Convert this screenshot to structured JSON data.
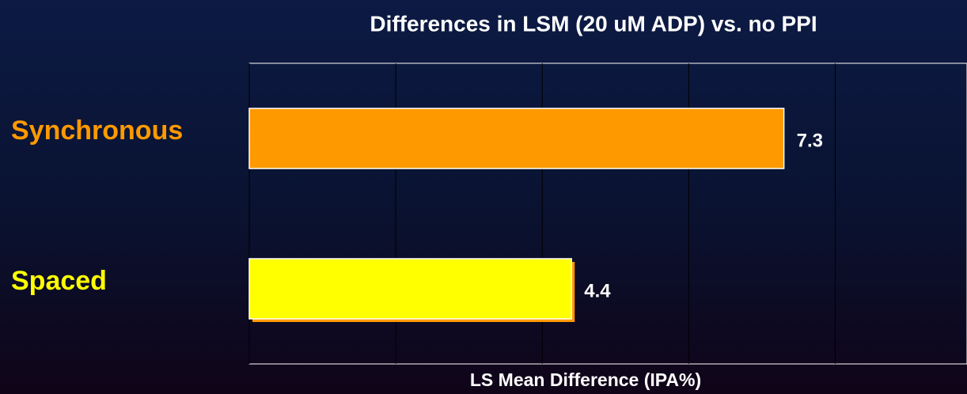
{
  "chart_data": {
    "type": "hbar",
    "title": "Differences in LSM  (20 uM ADP) vs. no PPI",
    "x_label": "LS Mean Difference (IPA%)",
    "categories": [
      "Synchronous",
      "Spaced"
    ],
    "category_colors": [
      "#ff9900",
      "#ffff00"
    ],
    "values": [
      7.3,
      4.4
    ],
    "colors": [
      "#ff9900",
      "#ffff00"
    ],
    "xlim": [
      0,
      9.8
    ],
    "xticks": [
      0,
      2,
      4,
      6,
      8
    ],
    "grid": true
  }
}
